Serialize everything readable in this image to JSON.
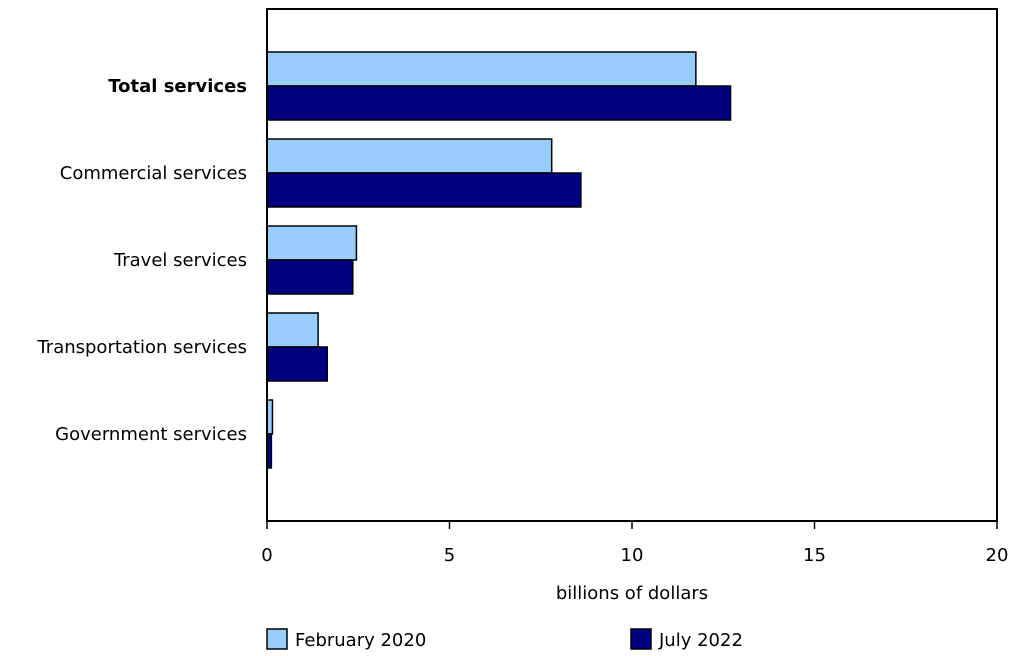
{
  "chart_data": {
    "type": "bar",
    "orientation": "horizontal",
    "categories": [
      "Total services",
      "Commercial services",
      "Travel services",
      "Transportation services",
      "Government services"
    ],
    "bold_categories": [
      "Total services"
    ],
    "series": [
      {
        "name": "February 2020",
        "color": "#99ccff",
        "values": [
          11.75,
          7.8,
          2.45,
          1.4,
          0.15
        ]
      },
      {
        "name": "July 2022",
        "color": "#000080",
        "values": [
          12.7,
          8.6,
          2.35,
          1.65,
          0.12
        ]
      }
    ],
    "xlabel": "billions of dollars",
    "xlim": [
      0,
      20
    ],
    "xticks": [
      0,
      5,
      10,
      15,
      20
    ],
    "grid": false,
    "legend_position": "bottom"
  }
}
